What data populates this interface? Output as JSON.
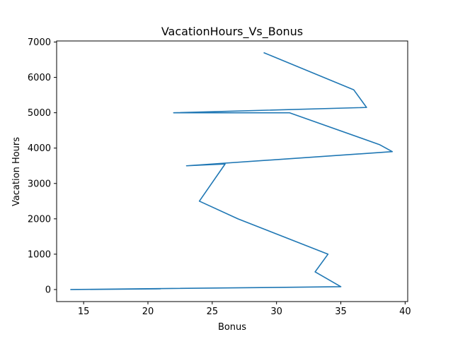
{
  "chart_data": {
    "type": "line",
    "title": "VacationHours_Vs_Bonus",
    "xlabel": "Bonus",
    "ylabel": "Vacation Hours",
    "xlim": [
      12.9,
      40.2
    ],
    "ylim": [
      -340,
      7030
    ],
    "xticks": [
      15,
      20,
      25,
      30,
      35,
      40
    ],
    "yticks": [
      0,
      1000,
      2000,
      3000,
      4000,
      5000,
      6000,
      7000
    ],
    "grid": false,
    "line_color": "#1f77b4",
    "series": [
      {
        "x": [
          29,
          36,
          37,
          22,
          31,
          38,
          39,
          23,
          26,
          24,
          27,
          34,
          33,
          35,
          14,
          21
        ],
        "y": [
          6700,
          5650,
          5150,
          5000,
          5000,
          4100,
          3900,
          3500,
          3550,
          2500,
          2000,
          1000,
          500,
          80,
          0,
          20
        ]
      }
    ]
  }
}
